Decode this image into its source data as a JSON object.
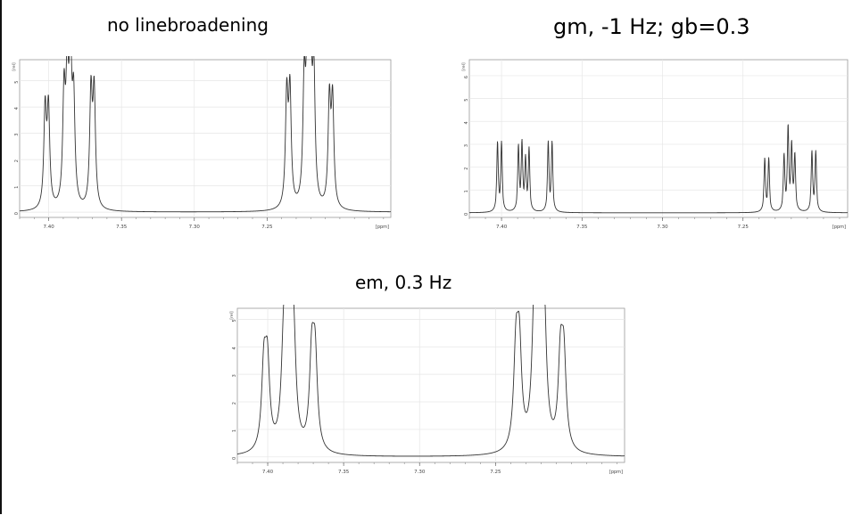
{
  "captions": [
    "no linebroadening",
    "gm, -1 Hz; gb=0.3",
    "em, 0.3 Hz"
  ],
  "chart_data": [
    {
      "type": "line",
      "title": "no linebroadening",
      "xlabel": "[ppm]",
      "ylabel": "[rel]",
      "x_reversed": true,
      "xlim": [
        7.42,
        7.165
      ],
      "ylim": [
        -0.2,
        5.8
      ],
      "xticks": [
        7.4,
        7.35,
        7.3,
        7.25
      ],
      "xtick_labels": [
        "7.40",
        "7.35",
        "7.30",
        "7.25"
      ],
      "yticks": [
        0,
        1,
        2,
        3,
        4,
        5
      ],
      "ytick_labels": [
        "0",
        "1",
        "2",
        "3",
        "4",
        "5"
      ],
      "grid": true,
      "linewidth_hz": 0.3,
      "baseline": 0,
      "peaks": [
        {
          "ppm": 7.4025,
          "height": 3.7
        },
        {
          "ppm": 7.4002,
          "height": 3.7
        },
        {
          "ppm": 7.3895,
          "height": 4.1
        },
        {
          "ppm": 7.3873,
          "height": 4.6
        },
        {
          "ppm": 7.3851,
          "height": 5.6
        },
        {
          "ppm": 7.3829,
          "height": 3.8
        },
        {
          "ppm": 7.371,
          "height": 4.3
        },
        {
          "ppm": 7.3688,
          "height": 4.3
        },
        {
          "ppm": 7.2365,
          "height": 4.2
        },
        {
          "ppm": 7.2343,
          "height": 4.3
        },
        {
          "ppm": 7.2245,
          "height": 4.4
        },
        {
          "ppm": 7.2223,
          "height": 5.8
        },
        {
          "ppm": 7.2201,
          "height": 5.3
        },
        {
          "ppm": 7.2179,
          "height": 4.8
        },
        {
          "ppm": 7.2072,
          "height": 4.0
        },
        {
          "ppm": 7.205,
          "height": 4.0
        }
      ]
    },
    {
      "type": "line",
      "title": "gm, -1 Hz; gb=0.3",
      "xlabel": "[ppm]",
      "ylabel": "[rel]",
      "x_reversed": true,
      "xlim": [
        7.42,
        7.185
      ],
      "ylim": [
        -0.2,
        6.7
      ],
      "xticks": [
        7.4,
        7.35,
        7.3,
        7.25
      ],
      "xtick_labels": [
        "7.40",
        "7.35",
        "7.30",
        "7.25"
      ],
      "yticks": [
        0,
        1,
        2,
        3,
        4,
        5,
        6
      ],
      "ytick_labels": [
        "0",
        "1",
        "2",
        "3",
        "4",
        "5",
        "6"
      ],
      "grid": true,
      "linewidth_hz": 0.1,
      "baseline": 0,
      "peaks": [
        {
          "ppm": 7.4025,
          "height": 3.0
        },
        {
          "ppm": 7.4,
          "height": 3.0
        },
        {
          "ppm": 7.3895,
          "height": 2.8
        },
        {
          "ppm": 7.3873,
          "height": 2.9
        },
        {
          "ppm": 7.3851,
          "height": 2.2
        },
        {
          "ppm": 7.3829,
          "height": 2.7
        },
        {
          "ppm": 7.371,
          "height": 3.0
        },
        {
          "ppm": 7.3686,
          "height": 3.0
        },
        {
          "ppm": 7.2365,
          "height": 2.3
        },
        {
          "ppm": 7.234,
          "height": 2.3
        },
        {
          "ppm": 7.2245,
          "height": 2.4
        },
        {
          "ppm": 7.222,
          "height": 3.6
        },
        {
          "ppm": 7.2198,
          "height": 2.8
        },
        {
          "ppm": 7.2178,
          "height": 2.4
        },
        {
          "ppm": 7.2072,
          "height": 2.6
        },
        {
          "ppm": 7.2048,
          "height": 2.6
        }
      ]
    },
    {
      "type": "line",
      "title": "em, 0.3 Hz",
      "xlabel": "[ppm]",
      "ylabel": "[rel]",
      "x_reversed": true,
      "xlim": [
        7.42,
        7.165
      ],
      "ylim": [
        -0.2,
        5.4
      ],
      "xticks": [
        7.4,
        7.35,
        7.3,
        7.25
      ],
      "xtick_labels": [
        "7.40",
        "7.35",
        "7.30",
        "7.25"
      ],
      "yticks": [
        0,
        1,
        2,
        3,
        4,
        5
      ],
      "ytick_labels": [
        "0",
        "1",
        "2",
        "3",
        "4",
        "5"
      ],
      "grid": true,
      "linewidth_hz": 0.6,
      "baseline": 0,
      "peaks": [
        {
          "ppm": 7.4025,
          "height": 2.9
        },
        {
          "ppm": 7.4002,
          "height": 2.9
        },
        {
          "ppm": 7.3895,
          "height": 3.0
        },
        {
          "ppm": 7.3873,
          "height": 3.9
        },
        {
          "ppm": 7.3851,
          "height": 4.4
        },
        {
          "ppm": 7.3829,
          "height": 3.0
        },
        {
          "ppm": 7.371,
          "height": 3.2
        },
        {
          "ppm": 7.3688,
          "height": 3.2
        },
        {
          "ppm": 7.2365,
          "height": 3.4
        },
        {
          "ppm": 7.2343,
          "height": 3.4
        },
        {
          "ppm": 7.2245,
          "height": 3.5
        },
        {
          "ppm": 7.2223,
          "height": 5.4
        },
        {
          "ppm": 7.2201,
          "height": 4.2
        },
        {
          "ppm": 7.2179,
          "height": 3.6
        },
        {
          "ppm": 7.2072,
          "height": 3.1
        },
        {
          "ppm": 7.205,
          "height": 3.1
        }
      ]
    }
  ]
}
